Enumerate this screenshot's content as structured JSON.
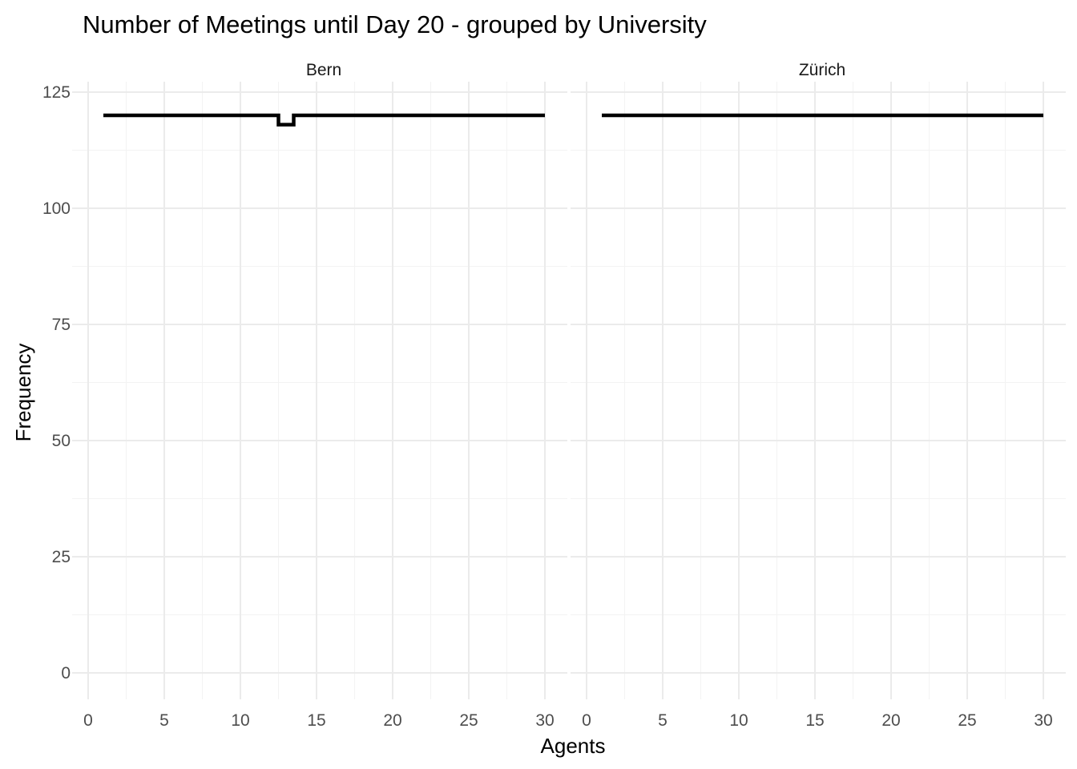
{
  "chart_data": {
    "type": "line",
    "title": "Number of Meetings until Day 20 - grouped by University",
    "xlabel": "Agents",
    "ylabel": "Frequency",
    "xlim": [
      0,
      30
    ],
    "ylim": [
      0,
      125
    ],
    "x_ticks": [
      0,
      5,
      10,
      15,
      20,
      25,
      30
    ],
    "y_ticks": [
      0,
      25,
      50,
      75,
      100,
      125
    ],
    "grid": true,
    "geom": "step",
    "line_color": "#000000",
    "panels": [
      {
        "name": "Bern",
        "x": [
          1,
          2,
          3,
          4,
          5,
          6,
          7,
          8,
          9,
          10,
          11,
          12,
          13,
          14,
          15,
          16,
          17,
          18,
          19,
          20,
          21,
          22,
          23,
          24,
          25,
          26,
          27,
          28,
          29,
          30
        ],
        "y": [
          120,
          120,
          120,
          120,
          120,
          120,
          120,
          120,
          120,
          120,
          120,
          120,
          118,
          120,
          120,
          120,
          120,
          120,
          120,
          120,
          120,
          120,
          120,
          120,
          120,
          120,
          120,
          120,
          120,
          120
        ]
      },
      {
        "name": "Zürich",
        "x": [
          1,
          2,
          3,
          4,
          5,
          6,
          7,
          8,
          9,
          10,
          11,
          12,
          13,
          14,
          15,
          16,
          17,
          18,
          19,
          20,
          21,
          22,
          23,
          24,
          25,
          26,
          27,
          28,
          29,
          30
        ],
        "y": [
          120,
          120,
          120,
          120,
          120,
          120,
          120,
          120,
          120,
          120,
          120,
          120,
          120,
          120,
          120,
          120,
          120,
          120,
          120,
          120,
          120,
          120,
          120,
          120,
          120,
          120,
          120,
          120,
          120,
          120
        ]
      }
    ]
  }
}
